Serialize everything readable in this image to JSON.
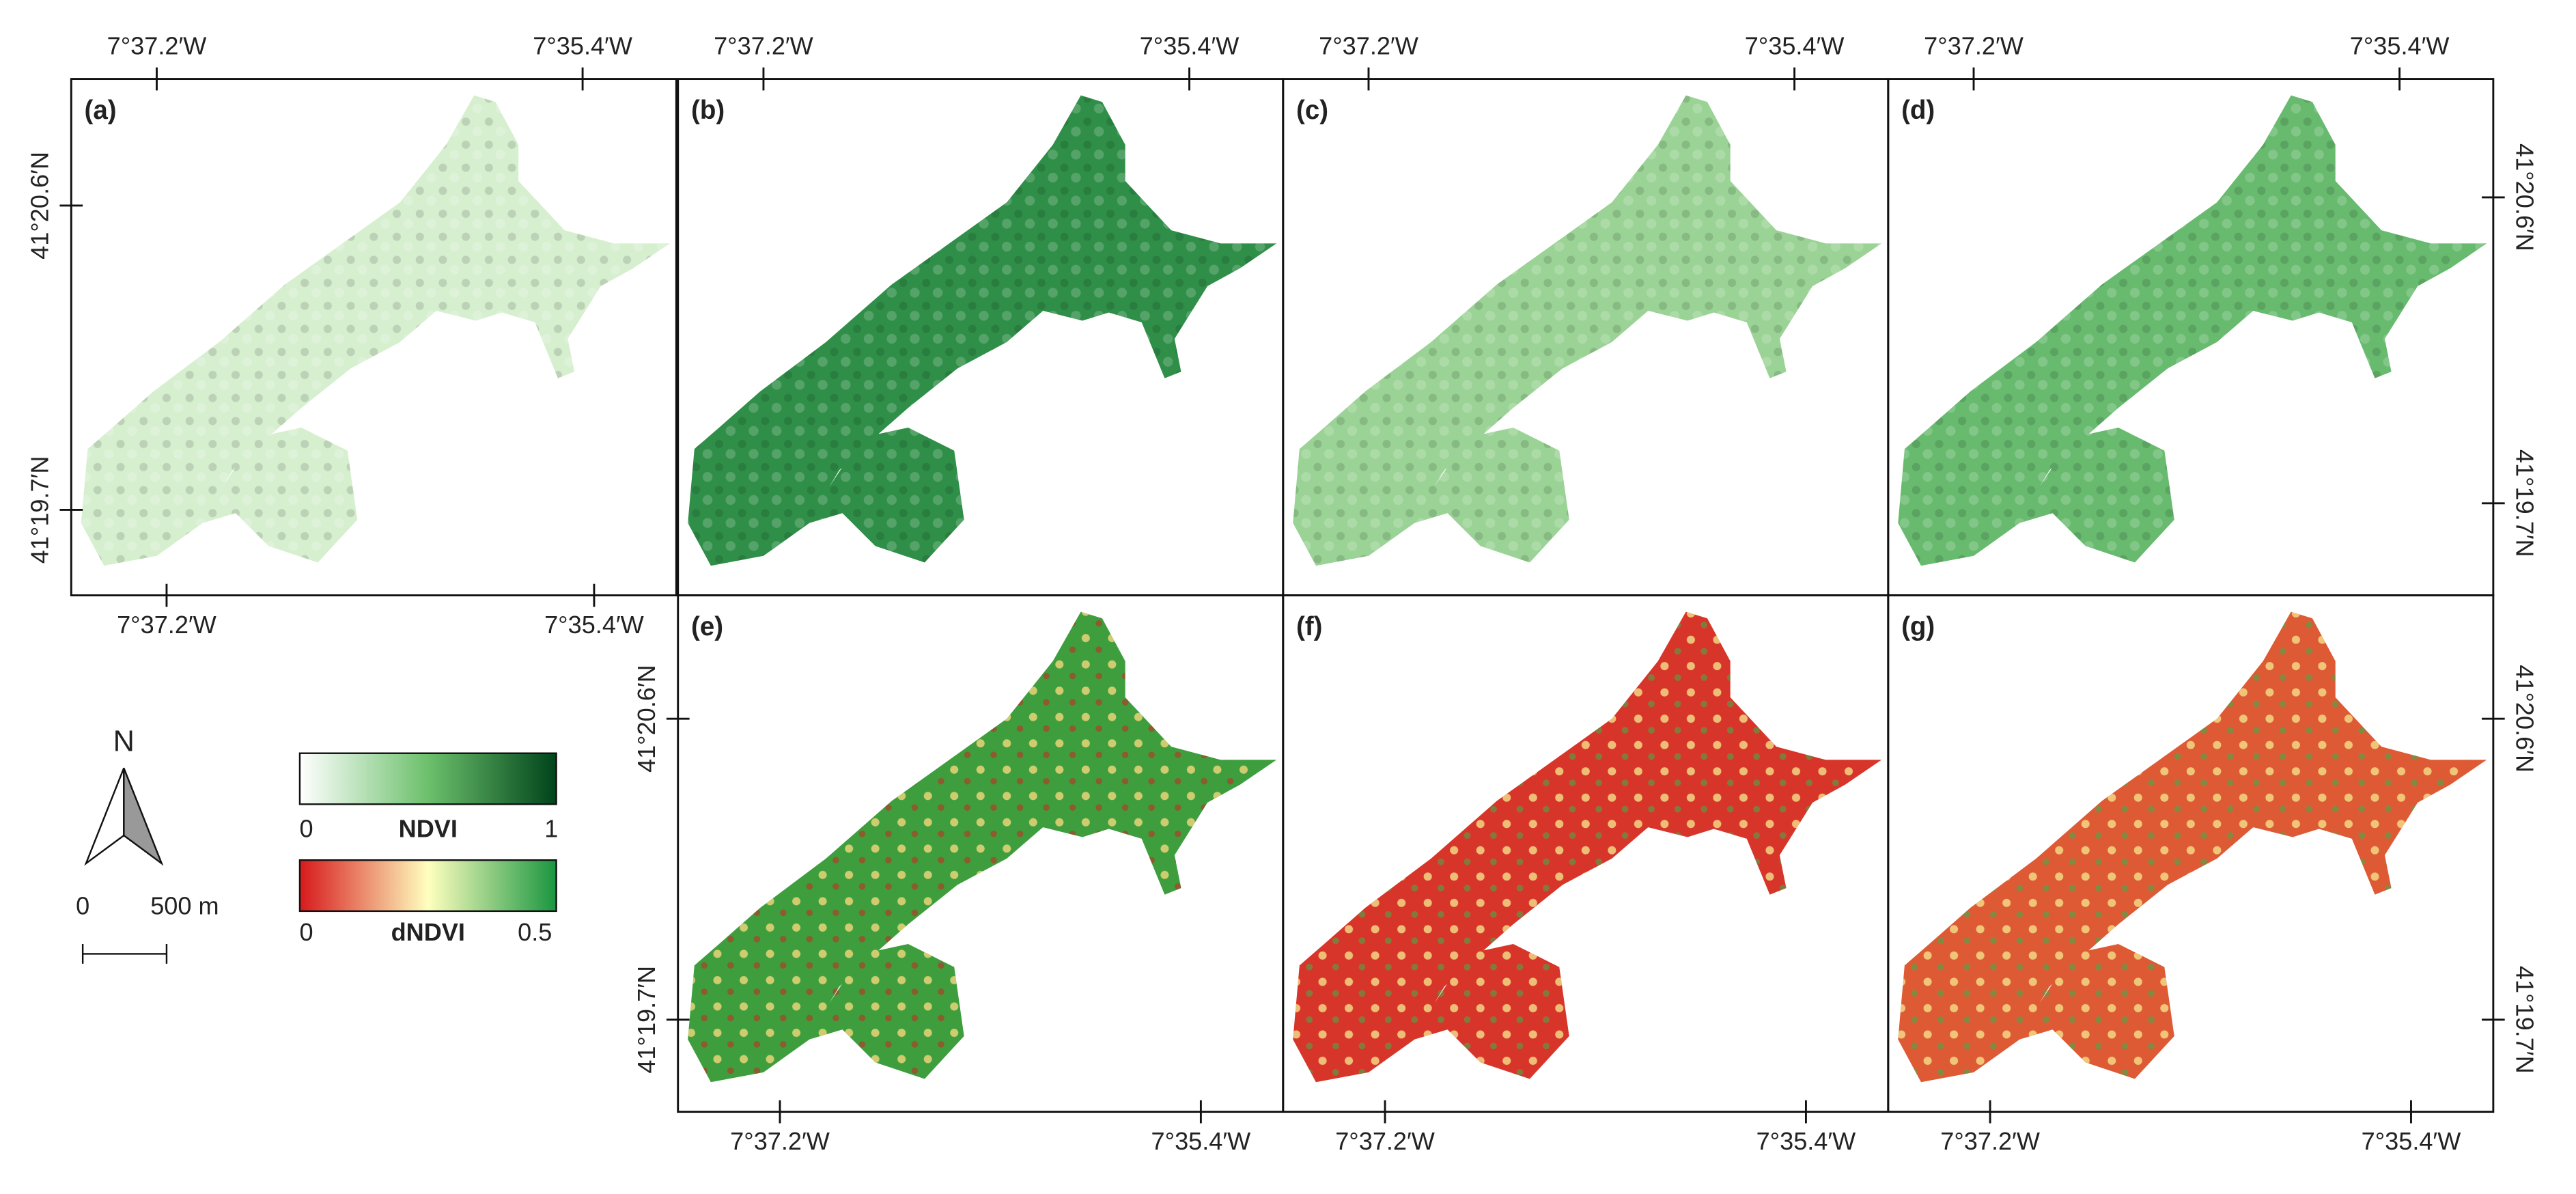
{
  "panels": [
    "(a)",
    "(b)",
    "(c)",
    "(d)",
    "(e)",
    "(f)",
    "(g)"
  ],
  "x_ticks": [
    "7°37.2′W",
    "7°35.4′W"
  ],
  "y_ticks": [
    "41°20.6′N",
    "41°19.7′N"
  ],
  "legend": {
    "north": "N",
    "scale_min": "0",
    "scale_max": "500 m",
    "ndvi": {
      "min": "0",
      "title": "NDVI",
      "max": "1"
    },
    "dndvi": {
      "min": "0",
      "title": "dNDVI",
      "max": "0.5"
    }
  }
}
